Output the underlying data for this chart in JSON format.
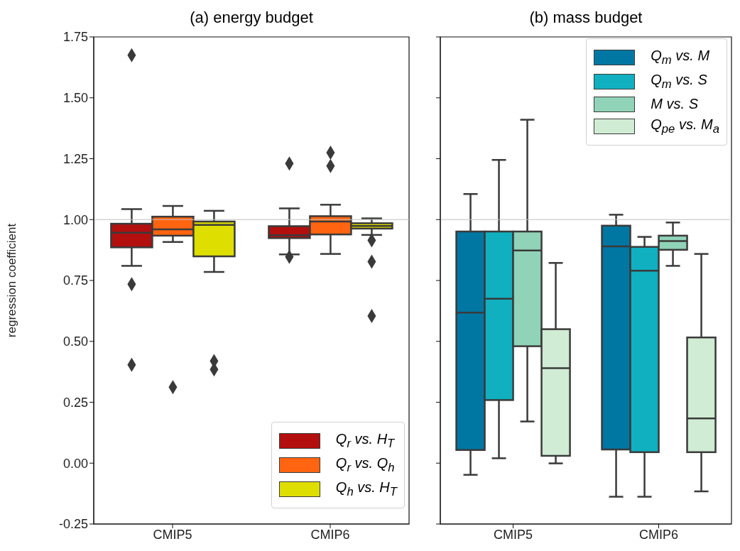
{
  "chart_data": [
    {
      "type": "box",
      "title": "(a) energy budget",
      "ylabel": "regression coefficient",
      "categories": [
        "CMIP5",
        "CMIP6"
      ],
      "ylim": [
        -0.25,
        1.75
      ],
      "yticks": [
        {
          "value": -0.25,
          "label": "-0.25"
        },
        {
          "value": 0,
          "label": "0.00"
        },
        {
          "value": 0.25,
          "label": "0.25"
        },
        {
          "value": 0.5,
          "label": "0.50"
        },
        {
          "value": 0.75,
          "label": "0.75"
        },
        {
          "value": 1,
          "label": "1.00"
        },
        {
          "value": 1.25,
          "label": "1.25"
        },
        {
          "value": 1.5,
          "label": "1.50"
        },
        {
          "value": 1.75,
          "label": "1.75"
        }
      ],
      "legend": "bottom right",
      "ref_lines": [
        {
          "axis": "y",
          "value": 1,
          "color": "#c0c0c0"
        }
      ],
      "series": [
        {
          "name": "Q$_{r}$ vs. H$_{T}$",
          "color": "#b30f0f",
          "boxes": [
            {
              "low": 0.81,
              "q1": 0.886,
              "median": 0.946,
              "q3": 0.983,
              "high": 1.043,
              "outliers": [
                1.675,
                0.735,
                0.404
              ]
            },
            {
              "low": 0.857,
              "q1": 0.924,
              "median": 0.936,
              "q3": 0.973,
              "high": 1.046,
              "outliers": [
                1.23,
                0.847
              ]
            }
          ]
        },
        {
          "name": "Q$_{r}$ vs. Q$_{h}$",
          "color": "#ff6410",
          "boxes": [
            {
              "low": 0.908,
              "q1": 0.934,
              "median": 0.96,
              "q3": 1.012,
              "high": 1.056,
              "outliers": [
                0.312
              ]
            },
            {
              "low": 0.859,
              "q1": 0.939,
              "median": 0.992,
              "q3": 1.014,
              "high": 1.061,
              "outliers": [
                1.275,
                1.22
              ]
            }
          ]
        },
        {
          "name": "Q$_{h}$ vs. H$_{T}$",
          "color": "#dede00",
          "boxes": [
            {
              "low": 0.785,
              "q1": 0.849,
              "median": 0.978,
              "q3": 0.992,
              "high": 1.036,
              "outliers": [
                0.419,
                0.385
              ]
            },
            {
              "low": 0.937,
              "q1": 0.963,
              "median": 0.974,
              "q3": 0.985,
              "high": 1.005,
              "outliers": [
                0.915,
                0.827,
                0.604
              ]
            }
          ]
        }
      ]
    },
    {
      "type": "box",
      "title": "(b) mass budget",
      "categories": [
        "CMIP5",
        "CMIP6"
      ],
      "ylim": [
        -0.25,
        1.75
      ],
      "yticks": [
        {
          "value": -0.25,
          "label": null
        },
        {
          "value": 0,
          "label": null
        },
        {
          "value": 0.25,
          "label": null
        },
        {
          "value": 0.5,
          "label": null
        },
        {
          "value": 0.75,
          "label": null
        },
        {
          "value": 1,
          "label": null
        },
        {
          "value": 1.25,
          "label": null
        },
        {
          "value": 1.5,
          "label": null
        },
        {
          "value": 1.75,
          "label": null
        }
      ],
      "tick_labels": "x",
      "legend": "top right",
      "ref_lines": [
        {
          "axis": "y",
          "value": 1,
          "color": "#c0c0c0"
        }
      ],
      "series": [
        {
          "name": "Q$_{m}$ vs. M",
          "color": "#0077a3",
          "boxes": [
            {
              "low": -0.048,
              "q1": 0.054,
              "median": 0.618,
              "q3": 0.951,
              "high": 1.105
            },
            {
              "low": -0.138,
              "q1": 0.056,
              "median": 0.89,
              "q3": 0.975,
              "high": 1.02
            }
          ]
        },
        {
          "name": "Q$_{m}$ vs. S",
          "color": "#10b0c0",
          "boxes": [
            {
              "low": 0.02,
              "q1": 0.259,
              "median": 0.675,
              "q3": 0.951,
              "high": 1.245
            },
            {
              "low": -0.138,
              "q1": 0.045,
              "median": 0.79,
              "q3": 0.888,
              "high": 0.929
            }
          ]
        },
        {
          "name": "M vs. S",
          "color": "#90d3b8",
          "boxes": [
            {
              "low": 0.171,
              "q1": 0.48,
              "median": 0.873,
              "q3": 0.951,
              "high": 1.41
            },
            {
              "low": 0.81,
              "q1": 0.876,
              "median": 0.912,
              "q3": 0.934,
              "high": 0.988
            }
          ]
        },
        {
          "name": "Q$_{pe}$ vs. M$_{a}$",
          "color": "#d0ecd4",
          "boxes": [
            {
              "low": -0.001,
              "q1": 0.03,
              "median": 0.39,
              "q3": 0.55,
              "high": 0.822
            },
            {
              "low": -0.116,
              "q1": 0.045,
              "median": 0.184,
              "q3": 0.516,
              "high": 0.859
            }
          ]
        }
      ]
    }
  ]
}
